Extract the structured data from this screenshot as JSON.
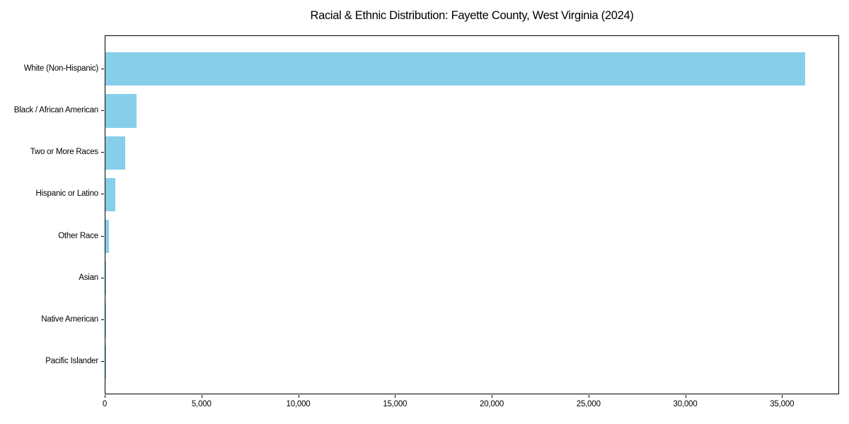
{
  "title": "Racial & Ethnic Distribution: Fayette County, West Virginia (2024)",
  "chart_data": {
    "type": "bar",
    "orientation": "horizontal",
    "title": "Racial & Ethnic Distribution: Fayette County, West Virginia (2024)",
    "categories": [
      "White (Non-Hispanic)",
      "Black / African American",
      "Two or More Races",
      "Hispanic or Latino",
      "Other Race",
      "Asian",
      "Native American",
      "Pacific Islander"
    ],
    "values": [
      36150,
      1620,
      1010,
      500,
      180,
      40,
      25,
      10
    ],
    "xlabel": "",
    "ylabel": "",
    "xlim": [
      0,
      37950
    ],
    "xticks": [
      0,
      5000,
      10000,
      15000,
      20000,
      25000,
      30000,
      35000
    ],
    "xtick_labels": [
      "0",
      "5,000",
      "10,000",
      "15,000",
      "20,000",
      "25,000",
      "30,000",
      "35,000"
    ],
    "bar_color": "#87CEEB",
    "grid": false,
    "legend_position": "none"
  }
}
